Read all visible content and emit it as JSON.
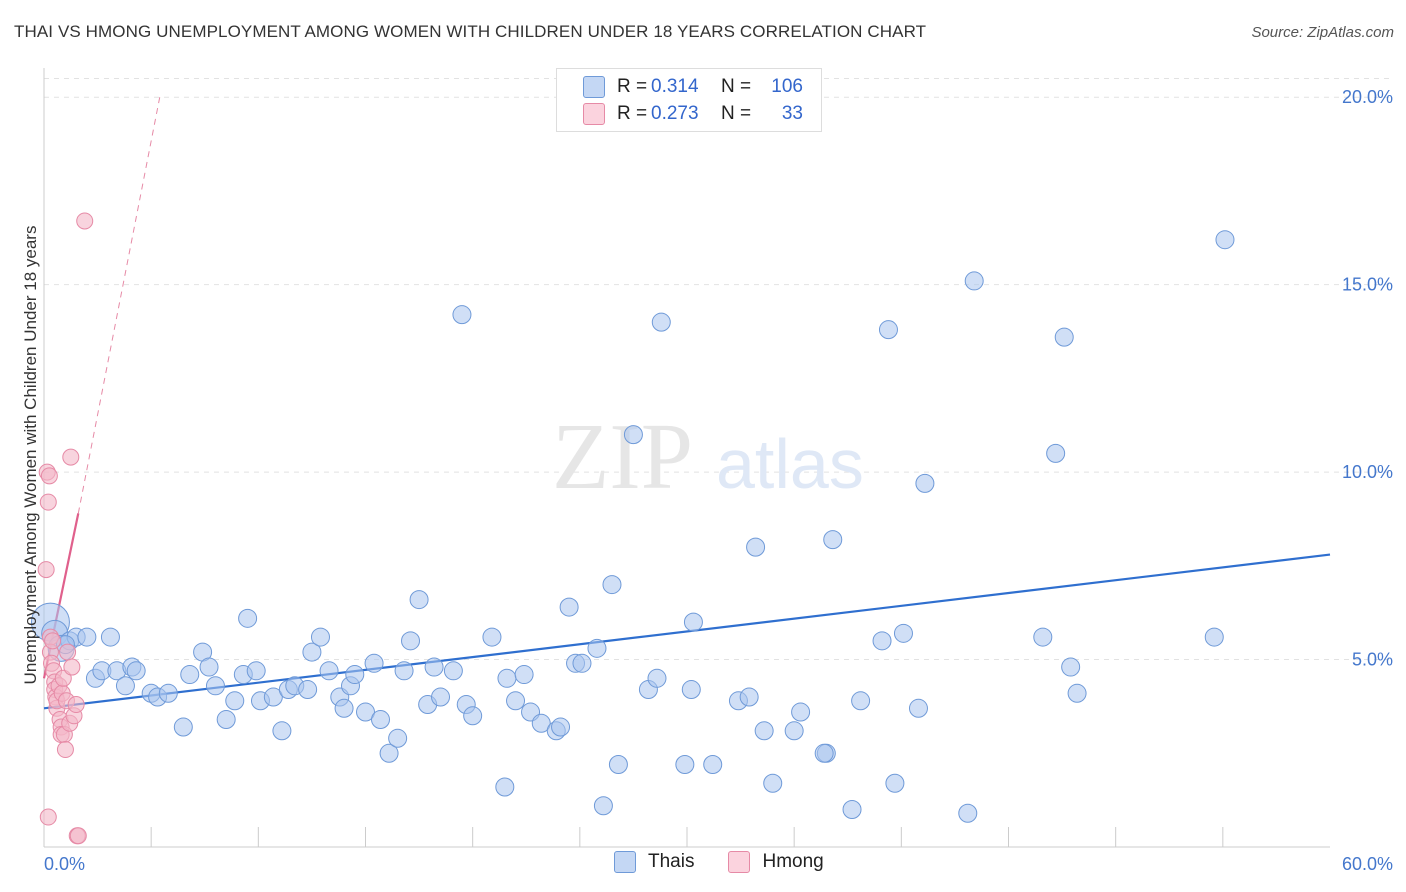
{
  "header": {
    "title": "THAI VS HMONG UNEMPLOYMENT AMONG WOMEN WITH CHILDREN UNDER 18 YEARS CORRELATION CHART",
    "source": "Source: ZipAtlas.com"
  },
  "watermark": {
    "zip": "ZIP",
    "atlas": "atlas"
  },
  "legend": {
    "rows": [
      {
        "r_label": "R =",
        "r_value": "0.314",
        "n_label": "N =",
        "n_value": "106",
        "color": "#a9c4ee"
      },
      {
        "r_label": "R =",
        "r_value": "0.273",
        "n_label": "N =",
        "n_value": "33",
        "color": "#f4b8c8"
      }
    ],
    "series_names": [
      "Thais",
      "Hmong"
    ]
  },
  "colors": {
    "thais_fill": "#a9c4ee",
    "thais_stroke": "#6f9ad8",
    "thais_line": "#2f6fcf",
    "hmong_fill": "#f4b8c8",
    "hmong_stroke": "#e68aa6",
    "hmong_line": "#e0608c",
    "tick_text": "#4477cc"
  },
  "chart_data": {
    "type": "scatter",
    "title": "THAI VS HMONG UNEMPLOYMENT AMONG WOMEN WITH CHILDREN UNDER 18 YEARS CORRELATION CHART",
    "xlabel": "",
    "ylabel": "Unemployment Among Women with Children Under 18 years",
    "xlim": [
      0,
      60
    ],
    "ylim": [
      0,
      20.5
    ],
    "x_tick_labels": [
      "0.0%",
      "60.0%"
    ],
    "y_ticks": [
      5,
      10,
      15,
      20
    ],
    "y_tick_labels": [
      "5.0%",
      "10.0%",
      "15.0%",
      "20.0%"
    ],
    "series": [
      {
        "name": "Thais",
        "r": 0.314,
        "n": 106,
        "trend": {
          "x": [
            0,
            60
          ],
          "y": [
            3.7,
            7.8
          ]
        },
        "points": [
          [
            0.3,
            6.0
          ],
          [
            0.5,
            5.7
          ],
          [
            0.8,
            5.3
          ],
          [
            1.2,
            5.5
          ],
          [
            1.5,
            5.6
          ],
          [
            2.0,
            5.6
          ],
          [
            3.1,
            5.6
          ],
          [
            2.4,
            4.5
          ],
          [
            2.7,
            4.7
          ],
          [
            3.4,
            4.7
          ],
          [
            3.8,
            4.3
          ],
          [
            4.1,
            4.8
          ],
          [
            4.3,
            4.7
          ],
          [
            5.0,
            4.1
          ],
          [
            5.3,
            4.0
          ],
          [
            5.8,
            4.1
          ],
          [
            6.5,
            3.2
          ],
          [
            6.8,
            4.6
          ],
          [
            7.4,
            5.2
          ],
          [
            7.7,
            4.8
          ],
          [
            8.0,
            4.3
          ],
          [
            8.5,
            3.4
          ],
          [
            8.9,
            3.9
          ],
          [
            9.3,
            4.6
          ],
          [
            9.5,
            6.1
          ],
          [
            9.9,
            4.7
          ],
          [
            10.1,
            3.9
          ],
          [
            10.7,
            4.0
          ],
          [
            11.1,
            3.1
          ],
          [
            11.4,
            4.2
          ],
          [
            11.7,
            4.3
          ],
          [
            12.3,
            4.2
          ],
          [
            12.5,
            5.2
          ],
          [
            12.9,
            5.6
          ],
          [
            13.3,
            4.7
          ],
          [
            13.8,
            4.0
          ],
          [
            14.0,
            3.7
          ],
          [
            14.3,
            4.3
          ],
          [
            14.5,
            4.6
          ],
          [
            15.0,
            3.6
          ],
          [
            15.4,
            4.9
          ],
          [
            15.7,
            3.4
          ],
          [
            16.1,
            2.5
          ],
          [
            16.5,
            2.9
          ],
          [
            16.8,
            4.7
          ],
          [
            17.1,
            5.5
          ],
          [
            17.5,
            6.6
          ],
          [
            17.9,
            3.8
          ],
          [
            18.2,
            4.8
          ],
          [
            18.5,
            4.0
          ],
          [
            19.1,
            4.7
          ],
          [
            19.5,
            14.2
          ],
          [
            19.7,
            3.8
          ],
          [
            20.0,
            3.5
          ],
          [
            20.9,
            5.6
          ],
          [
            21.5,
            1.6
          ],
          [
            21.6,
            4.5
          ],
          [
            22.0,
            3.9
          ],
          [
            22.4,
            4.6
          ],
          [
            22.7,
            3.6
          ],
          [
            23.2,
            3.3
          ],
          [
            23.9,
            3.1
          ],
          [
            24.1,
            3.2
          ],
          [
            24.5,
            6.4
          ],
          [
            24.8,
            4.9
          ],
          [
            25.1,
            4.9
          ],
          [
            25.8,
            5.3
          ],
          [
            26.1,
            1.1
          ],
          [
            26.5,
            7.0
          ],
          [
            26.8,
            2.2
          ],
          [
            27.5,
            11.0
          ],
          [
            28.2,
            4.2
          ],
          [
            28.6,
            4.5
          ],
          [
            28.8,
            14.0
          ],
          [
            29.9,
            2.2
          ],
          [
            30.2,
            4.2
          ],
          [
            30.3,
            6.0
          ],
          [
            31.2,
            2.2
          ],
          [
            32.4,
            3.9
          ],
          [
            32.9,
            4.0
          ],
          [
            33.2,
            8.0
          ],
          [
            33.6,
            3.1
          ],
          [
            34.0,
            1.7
          ],
          [
            35.0,
            3.1
          ],
          [
            35.3,
            3.6
          ],
          [
            36.5,
            2.5
          ],
          [
            36.8,
            8.2
          ],
          [
            37.7,
            1.0
          ],
          [
            38.1,
            3.9
          ],
          [
            39.1,
            5.5
          ],
          [
            39.4,
            13.8
          ],
          [
            39.7,
            1.7
          ],
          [
            40.1,
            5.7
          ],
          [
            40.8,
            3.7
          ],
          [
            41.1,
            9.7
          ],
          [
            43.1,
            0.9
          ],
          [
            43.4,
            15.1
          ],
          [
            46.6,
            5.6
          ],
          [
            47.2,
            10.5
          ],
          [
            47.6,
            13.6
          ],
          [
            47.9,
            4.8
          ],
          [
            48.2,
            4.1
          ],
          [
            54.6,
            5.6
          ],
          [
            55.1,
            16.2
          ],
          [
            1.0,
            5.4
          ],
          [
            36.4,
            2.5
          ]
        ]
      },
      {
        "name": "Hmong",
        "r": 0.273,
        "n": 33,
        "trend": {
          "x": [
            0,
            1.6
          ],
          "y": [
            4.5,
            8.9
          ]
        },
        "trend_extended": {
          "x": [
            1.6,
            5.4
          ],
          "y": [
            8.9,
            20.0
          ]
        },
        "points": [
          [
            0.1,
            7.4
          ],
          [
            0.15,
            10.0
          ],
          [
            0.2,
            9.2
          ],
          [
            0.25,
            9.9
          ],
          [
            0.3,
            5.6
          ],
          [
            0.3,
            5.2
          ],
          [
            0.35,
            4.9
          ],
          [
            0.4,
            5.5
          ],
          [
            0.45,
            4.7
          ],
          [
            0.5,
            4.4
          ],
          [
            0.5,
            4.2
          ],
          [
            0.55,
            4.0
          ],
          [
            0.6,
            3.7
          ],
          [
            0.6,
            3.9
          ],
          [
            0.7,
            4.3
          ],
          [
            0.75,
            3.4
          ],
          [
            0.8,
            3.2
          ],
          [
            0.8,
            3.0
          ],
          [
            0.85,
            4.1
          ],
          [
            0.9,
            4.5
          ],
          [
            0.95,
            3.0
          ],
          [
            1.0,
            2.6
          ],
          [
            1.05,
            3.9
          ],
          [
            1.1,
            5.2
          ],
          [
            1.2,
            3.3
          ],
          [
            1.25,
            10.4
          ],
          [
            1.3,
            4.8
          ],
          [
            1.4,
            3.5
          ],
          [
            1.5,
            3.8
          ],
          [
            1.55,
            0.3
          ],
          [
            1.6,
            0.3
          ],
          [
            1.9,
            16.7
          ],
          [
            0.2,
            0.8
          ]
        ]
      }
    ]
  }
}
